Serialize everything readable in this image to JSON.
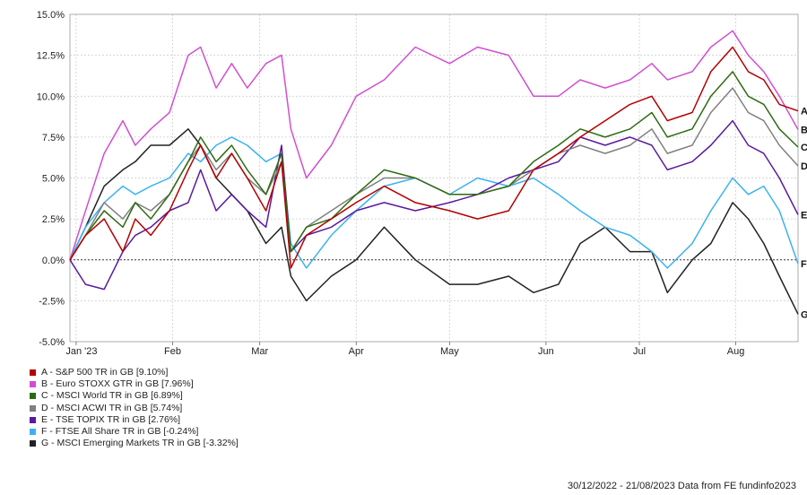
{
  "chart_data": {
    "type": "line",
    "y_ticks": [
      "15.0%",
      "12.5%",
      "10.0%",
      "7.5%",
      "5.0%",
      "2.5%",
      "0.0%",
      "-2.5%",
      "-5.0%"
    ],
    "y_tick_values": [
      15,
      12.5,
      10,
      7.5,
      5,
      2.5,
      0,
      -2.5,
      -5
    ],
    "ylim": [
      -5,
      15
    ],
    "x_ticks": [
      "Jan '23",
      "Feb",
      "Mar",
      "Apr",
      "May",
      "Jun",
      "Jul",
      "Aug"
    ],
    "x_tick_dates": [
      "2023-01-01",
      "2023-02-01",
      "2023-03-01",
      "2023-04-01",
      "2023-05-01",
      "2023-06-01",
      "2023-07-01",
      "2023-08-01"
    ],
    "x_range": [
      "2022-12-30",
      "2023-08-21"
    ],
    "grid": true,
    "legend_position": "bottom-left",
    "date_range_note": "30/12/2022 - 21/08/2023 Data from FE fundinfo2023",
    "series": [
      {
        "letter": "A",
        "name": "A - S&P 500 TR in GB [9.10%]",
        "color": "#b30000",
        "points": [
          [
            "2022-12-30",
            0
          ],
          [
            "2023-01-04",
            1.5
          ],
          [
            "2023-01-10",
            2.5
          ],
          [
            "2023-01-16",
            0.5
          ],
          [
            "2023-01-20",
            2.5
          ],
          [
            "2023-01-25",
            1.5
          ],
          [
            "2023-01-31",
            3
          ],
          [
            "2023-02-06",
            5.5
          ],
          [
            "2023-02-10",
            7
          ],
          [
            "2023-02-15",
            5
          ],
          [
            "2023-02-20",
            6.5
          ],
          [
            "2023-02-25",
            5
          ],
          [
            "2023-03-03",
            3
          ],
          [
            "2023-03-08",
            6
          ],
          [
            "2023-03-11",
            -0.5
          ],
          [
            "2023-03-16",
            1.5
          ],
          [
            "2023-03-24",
            2.5
          ],
          [
            "2023-04-01",
            3.5
          ],
          [
            "2023-04-10",
            4.5
          ],
          [
            "2023-04-20",
            3.5
          ],
          [
            "2023-05-01",
            3
          ],
          [
            "2023-05-10",
            2.5
          ],
          [
            "2023-05-20",
            3
          ],
          [
            "2023-05-28",
            5.5
          ],
          [
            "2023-06-05",
            6.5
          ],
          [
            "2023-06-12",
            7.5
          ],
          [
            "2023-06-20",
            8.5
          ],
          [
            "2023-06-28",
            9.5
          ],
          [
            "2023-07-05",
            10
          ],
          [
            "2023-07-10",
            8.5
          ],
          [
            "2023-07-18",
            9
          ],
          [
            "2023-07-24",
            11.5
          ],
          [
            "2023-07-31",
            13
          ],
          [
            "2023-08-05",
            11.5
          ],
          [
            "2023-08-10",
            11
          ],
          [
            "2023-08-15",
            9.5
          ],
          [
            "2023-08-21",
            9.1
          ]
        ]
      },
      {
        "letter": "B",
        "name": "B - Euro STOXX GTR in GB [7.96%]",
        "color": "#d14fd1",
        "points": [
          [
            "2022-12-30",
            0
          ],
          [
            "2023-01-04",
            3
          ],
          [
            "2023-01-10",
            6.5
          ],
          [
            "2023-01-16",
            8.5
          ],
          [
            "2023-01-20",
            7
          ],
          [
            "2023-01-25",
            8
          ],
          [
            "2023-01-31",
            9
          ],
          [
            "2023-02-06",
            12.5
          ],
          [
            "2023-02-10",
            13
          ],
          [
            "2023-02-15",
            10.5
          ],
          [
            "2023-02-20",
            12
          ],
          [
            "2023-02-25",
            10.5
          ],
          [
            "2023-03-03",
            12
          ],
          [
            "2023-03-08",
            12.5
          ],
          [
            "2023-03-11",
            8
          ],
          [
            "2023-03-16",
            5
          ],
          [
            "2023-03-24",
            7
          ],
          [
            "2023-04-01",
            10
          ],
          [
            "2023-04-10",
            11
          ],
          [
            "2023-04-20",
            13
          ],
          [
            "2023-05-01",
            12
          ],
          [
            "2023-05-10",
            13
          ],
          [
            "2023-05-20",
            12.5
          ],
          [
            "2023-05-28",
            10
          ],
          [
            "2023-06-05",
            10
          ],
          [
            "2023-06-12",
            11
          ],
          [
            "2023-06-20",
            10.5
          ],
          [
            "2023-06-28",
            11
          ],
          [
            "2023-07-05",
            12
          ],
          [
            "2023-07-10",
            11
          ],
          [
            "2023-07-18",
            11.5
          ],
          [
            "2023-07-24",
            13
          ],
          [
            "2023-07-31",
            14
          ],
          [
            "2023-08-05",
            12.5
          ],
          [
            "2023-08-10",
            11.5
          ],
          [
            "2023-08-15",
            10
          ],
          [
            "2023-08-21",
            7.96
          ]
        ]
      },
      {
        "letter": "C",
        "name": "C - MSCI World TR in GB [6.89%]",
        "color": "#2e6b12",
        "points": [
          [
            "2022-12-30",
            0
          ],
          [
            "2023-01-04",
            1.5
          ],
          [
            "2023-01-10",
            3
          ],
          [
            "2023-01-16",
            2
          ],
          [
            "2023-01-20",
            3.5
          ],
          [
            "2023-01-25",
            2.5
          ],
          [
            "2023-01-31",
            4
          ],
          [
            "2023-02-06",
            6
          ],
          [
            "2023-02-10",
            7.5
          ],
          [
            "2023-02-15",
            6
          ],
          [
            "2023-02-20",
            7
          ],
          [
            "2023-02-25",
            5.5
          ],
          [
            "2023-03-03",
            4
          ],
          [
            "2023-03-08",
            6.5
          ],
          [
            "2023-03-11",
            0.5
          ],
          [
            "2023-03-16",
            2
          ],
          [
            "2023-03-24",
            2.5
          ],
          [
            "2023-04-01",
            4
          ],
          [
            "2023-04-10",
            5.5
          ],
          [
            "2023-04-20",
            5
          ],
          [
            "2023-05-01",
            4
          ],
          [
            "2023-05-10",
            4
          ],
          [
            "2023-05-20",
            4.5
          ],
          [
            "2023-05-28",
            6
          ],
          [
            "2023-06-05",
            7
          ],
          [
            "2023-06-12",
            8
          ],
          [
            "2023-06-20",
            7.5
          ],
          [
            "2023-06-28",
            8
          ],
          [
            "2023-07-05",
            9
          ],
          [
            "2023-07-10",
            7.5
          ],
          [
            "2023-07-18",
            8
          ],
          [
            "2023-07-24",
            10
          ],
          [
            "2023-07-31",
            11.5
          ],
          [
            "2023-08-05",
            10
          ],
          [
            "2023-08-10",
            9.5
          ],
          [
            "2023-08-15",
            8
          ],
          [
            "2023-08-21",
            6.89
          ]
        ]
      },
      {
        "letter": "D",
        "name": "D - MSCI ACWI TR in GB [5.74%]",
        "color": "#808080",
        "points": [
          [
            "2022-12-30",
            0
          ],
          [
            "2023-01-04",
            1.5
          ],
          [
            "2023-01-10",
            3.5
          ],
          [
            "2023-01-16",
            2.5
          ],
          [
            "2023-01-20",
            3.5
          ],
          [
            "2023-01-25",
            3
          ],
          [
            "2023-01-31",
            4
          ],
          [
            "2023-02-06",
            6
          ],
          [
            "2023-02-10",
            7
          ],
          [
            "2023-02-15",
            5.5
          ],
          [
            "2023-02-20",
            6.5
          ],
          [
            "2023-02-25",
            5
          ],
          [
            "2023-03-03",
            4
          ],
          [
            "2023-03-08",
            6
          ],
          [
            "2023-03-11",
            0.5
          ],
          [
            "2023-03-16",
            2
          ],
          [
            "2023-03-24",
            3
          ],
          [
            "2023-04-01",
            4
          ],
          [
            "2023-04-10",
            5
          ],
          [
            "2023-04-20",
            5
          ],
          [
            "2023-05-01",
            4
          ],
          [
            "2023-05-10",
            4
          ],
          [
            "2023-05-20",
            4.5
          ],
          [
            "2023-05-28",
            5.5
          ],
          [
            "2023-06-05",
            6.5
          ],
          [
            "2023-06-12",
            7
          ],
          [
            "2023-06-20",
            6.5
          ],
          [
            "2023-06-28",
            7
          ],
          [
            "2023-07-05",
            8
          ],
          [
            "2023-07-10",
            6.5
          ],
          [
            "2023-07-18",
            7
          ],
          [
            "2023-07-24",
            9
          ],
          [
            "2023-07-31",
            10.5
          ],
          [
            "2023-08-05",
            9
          ],
          [
            "2023-08-10",
            8.5
          ],
          [
            "2023-08-15",
            7
          ],
          [
            "2023-08-21",
            5.74
          ]
        ]
      },
      {
        "letter": "E",
        "name": "E - TSE TOPIX TR in GB [2.76%]",
        "color": "#5b1a9e",
        "points": [
          [
            "2022-12-30",
            0
          ],
          [
            "2023-01-04",
            -1.5
          ],
          [
            "2023-01-10",
            -1.8
          ],
          [
            "2023-01-16",
            0.5
          ],
          [
            "2023-01-20",
            1.5
          ],
          [
            "2023-01-25",
            2
          ],
          [
            "2023-01-31",
            3
          ],
          [
            "2023-02-06",
            3.5
          ],
          [
            "2023-02-10",
            5.5
          ],
          [
            "2023-02-15",
            3
          ],
          [
            "2023-02-20",
            4
          ],
          [
            "2023-02-25",
            3
          ],
          [
            "2023-03-03",
            2
          ],
          [
            "2023-03-08",
            7
          ],
          [
            "2023-03-11",
            0.5
          ],
          [
            "2023-03-16",
            1.5
          ],
          [
            "2023-03-24",
            2
          ],
          [
            "2023-04-01",
            3
          ],
          [
            "2023-04-10",
            3.5
          ],
          [
            "2023-04-20",
            3
          ],
          [
            "2023-05-01",
            3.5
          ],
          [
            "2023-05-10",
            4
          ],
          [
            "2023-05-20",
            5
          ],
          [
            "2023-05-28",
            5.5
          ],
          [
            "2023-06-05",
            6
          ],
          [
            "2023-06-12",
            7.5
          ],
          [
            "2023-06-20",
            7
          ],
          [
            "2023-06-28",
            7.5
          ],
          [
            "2023-07-05",
            7
          ],
          [
            "2023-07-10",
            5.5
          ],
          [
            "2023-07-18",
            6
          ],
          [
            "2023-07-24",
            7
          ],
          [
            "2023-07-31",
            8.5
          ],
          [
            "2023-08-05",
            7
          ],
          [
            "2023-08-10",
            6.5
          ],
          [
            "2023-08-15",
            5
          ],
          [
            "2023-08-21",
            2.76
          ]
        ]
      },
      {
        "letter": "F",
        "name": "F - FTSE All Share TR in GB [-0.24%]",
        "color": "#3bb2ef",
        "points": [
          [
            "2022-12-30",
            0
          ],
          [
            "2023-01-04",
            2
          ],
          [
            "2023-01-10",
            3.5
          ],
          [
            "2023-01-16",
            4.5
          ],
          [
            "2023-01-20",
            4
          ],
          [
            "2023-01-25",
            4.5
          ],
          [
            "2023-01-31",
            5
          ],
          [
            "2023-02-06",
            6.5
          ],
          [
            "2023-02-10",
            6
          ],
          [
            "2023-02-15",
            7
          ],
          [
            "2023-02-20",
            7.5
          ],
          [
            "2023-02-25",
            7
          ],
          [
            "2023-03-03",
            6
          ],
          [
            "2023-03-08",
            6.5
          ],
          [
            "2023-03-11",
            1
          ],
          [
            "2023-03-16",
            -0.5
          ],
          [
            "2023-03-24",
            1.5
          ],
          [
            "2023-04-01",
            3
          ],
          [
            "2023-04-10",
            4.5
          ],
          [
            "2023-04-20",
            5
          ],
          [
            "2023-05-01",
            4
          ],
          [
            "2023-05-10",
            5
          ],
          [
            "2023-05-20",
            4.5
          ],
          [
            "2023-05-28",
            5
          ],
          [
            "2023-06-05",
            4
          ],
          [
            "2023-06-12",
            3
          ],
          [
            "2023-06-20",
            2
          ],
          [
            "2023-06-28",
            1.5
          ],
          [
            "2023-07-05",
            0.5
          ],
          [
            "2023-07-10",
            -0.5
          ],
          [
            "2023-07-18",
            1
          ],
          [
            "2023-07-24",
            3
          ],
          [
            "2023-07-31",
            5
          ],
          [
            "2023-08-05",
            4
          ],
          [
            "2023-08-10",
            4.5
          ],
          [
            "2023-08-15",
            3
          ],
          [
            "2023-08-21",
            -0.24
          ]
        ]
      },
      {
        "letter": "G",
        "name": "G - MSCI Emerging Markets TR in GB [-3.32%]",
        "color": "#222222",
        "points": [
          [
            "2022-12-30",
            0
          ],
          [
            "2023-01-04",
            2
          ],
          [
            "2023-01-10",
            4.5
          ],
          [
            "2023-01-16",
            5.5
          ],
          [
            "2023-01-20",
            6
          ],
          [
            "2023-01-25",
            7
          ],
          [
            "2023-01-31",
            7
          ],
          [
            "2023-02-06",
            8
          ],
          [
            "2023-02-10",
            7
          ],
          [
            "2023-02-15",
            5
          ],
          [
            "2023-02-20",
            4
          ],
          [
            "2023-02-25",
            3
          ],
          [
            "2023-03-03",
            1
          ],
          [
            "2023-03-08",
            2
          ],
          [
            "2023-03-11",
            -1
          ],
          [
            "2023-03-16",
            -2.5
          ],
          [
            "2023-03-24",
            -1
          ],
          [
            "2023-04-01",
            0
          ],
          [
            "2023-04-10",
            2
          ],
          [
            "2023-04-20",
            0
          ],
          [
            "2023-05-01",
            -1.5
          ],
          [
            "2023-05-10",
            -1.5
          ],
          [
            "2023-05-20",
            -1
          ],
          [
            "2023-05-28",
            -2
          ],
          [
            "2023-06-05",
            -1.5
          ],
          [
            "2023-06-12",
            1
          ],
          [
            "2023-06-20",
            2
          ],
          [
            "2023-06-28",
            0.5
          ],
          [
            "2023-07-05",
            0.5
          ],
          [
            "2023-07-10",
            -2
          ],
          [
            "2023-07-18",
            0
          ],
          [
            "2023-07-24",
            1
          ],
          [
            "2023-07-31",
            3.5
          ],
          [
            "2023-08-05",
            2.5
          ],
          [
            "2023-08-10",
            1
          ],
          [
            "2023-08-15",
            -1
          ],
          [
            "2023-08-21",
            -3.32
          ]
        ]
      }
    ]
  }
}
